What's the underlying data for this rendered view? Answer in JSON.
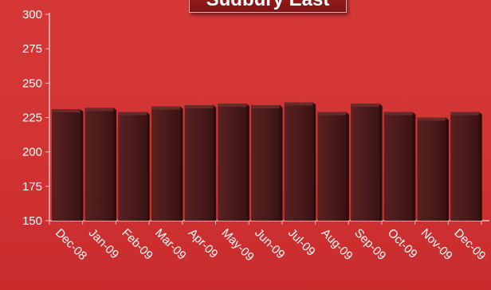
{
  "chart_data": {
    "type": "bar",
    "title": "Sudbury East",
    "categories": [
      "Dec-08",
      "Jan-09",
      "Feb-09",
      "Mar-09",
      "Apr-09",
      "May-09",
      "Jun-09",
      "Jul-09",
      "Aug-09",
      "Sep-09",
      "Oct-09",
      "Nov-09",
      "Dec-09"
    ],
    "values": [
      231,
      232,
      229,
      233,
      234,
      235,
      234,
      236,
      229,
      235,
      229,
      225,
      229
    ],
    "ylim": [
      150,
      300
    ],
    "yticks": [
      "150",
      "175",
      "200",
      "225",
      "250",
      "275",
      "300"
    ],
    "xlabel": "",
    "ylabel": "",
    "grid": false,
    "legend": "none",
    "colors": {
      "bar_front": "#4a1c1c",
      "bar_side": "#2a0c0c",
      "bar_top": "#6a2a2a",
      "axis": "#f0c0c0",
      "background": "#d63838"
    }
  }
}
